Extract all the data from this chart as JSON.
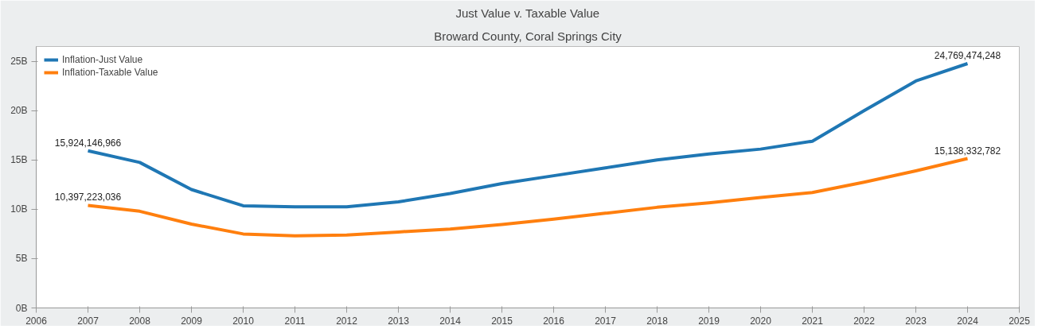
{
  "chart_data": {
    "type": "line",
    "title": "Just Value v. Taxable Value",
    "subtitle": "Broward County, Coral Springs City",
    "x": [
      2007,
      2008,
      2009,
      2010,
      2011,
      2012,
      2013,
      2014,
      2015,
      2016,
      2017,
      2018,
      2019,
      2020,
      2021,
      2022,
      2023,
      2024
    ],
    "series": [
      {
        "name": "Inflation-Just Value",
        "color": "#1f77b4",
        "values": [
          15924146966,
          14750000000,
          12000000000,
          10360000000,
          10250000000,
          10250000000,
          10750000000,
          11600000000,
          12600000000,
          13400000000,
          14200000000,
          15000000000,
          15600000000,
          16100000000,
          16900000000,
          20000000000,
          23000000000,
          24769474248
        ],
        "value_labels": [
          "15,924,146,966",
          null,
          null,
          null,
          null,
          null,
          null,
          null,
          null,
          null,
          null,
          null,
          null,
          null,
          null,
          null,
          null,
          "24,769,474,248"
        ]
      },
      {
        "name": "Inflation-Taxable Value",
        "color": "#ff7f0e",
        "values": [
          10397223036,
          9800000000,
          8500000000,
          7500000000,
          7300000000,
          7400000000,
          7700000000,
          8000000000,
          8450000000,
          9000000000,
          9600000000,
          10200000000,
          10650000000,
          11200000000,
          11700000000,
          12750000000,
          13900000000,
          15138332782
        ],
        "value_labels": [
          "10,397,223,036",
          null,
          null,
          null,
          null,
          null,
          null,
          null,
          null,
          null,
          null,
          null,
          null,
          null,
          null,
          null,
          null,
          "15,138,332,782"
        ]
      }
    ],
    "xlim": [
      2006,
      2025
    ],
    "xticks": [
      2006,
      2007,
      2008,
      2009,
      2010,
      2011,
      2012,
      2013,
      2014,
      2015,
      2016,
      2017,
      2018,
      2019,
      2020,
      2021,
      2022,
      2023,
      2024,
      2025
    ],
    "ylim": [
      0,
      26500000000
    ],
    "yticks": [
      {
        "value": 0,
        "label": "0B"
      },
      {
        "value": 5000000000,
        "label": "5B"
      },
      {
        "value": 10000000000,
        "label": "10B"
      },
      {
        "value": 15000000000,
        "label": "15B"
      },
      {
        "value": 20000000000,
        "label": "20B"
      },
      {
        "value": 25000000000,
        "label": "25B"
      }
    ],
    "grid": false,
    "legend": "top left",
    "marker": "none",
    "line_style": "solid"
  }
}
